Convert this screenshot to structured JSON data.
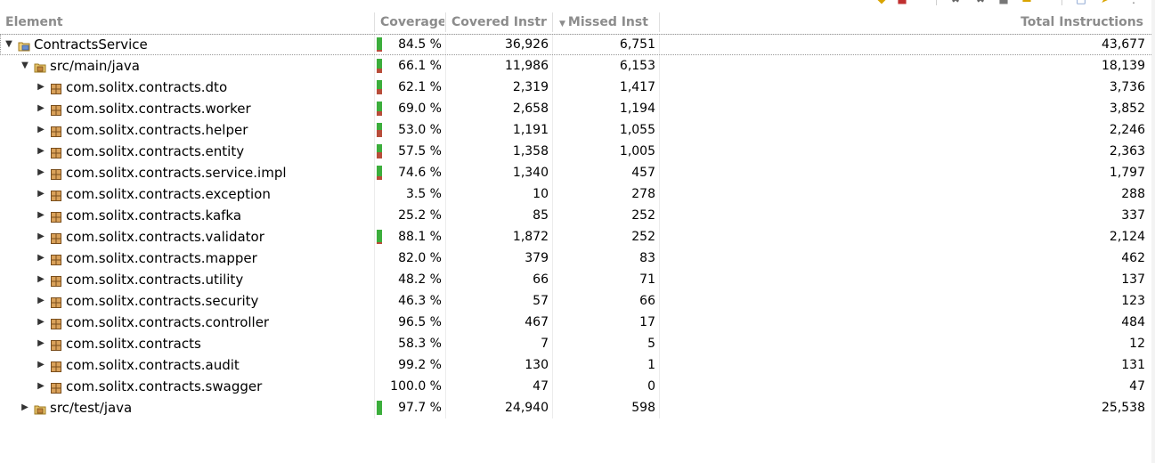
{
  "header": {
    "element": "Element",
    "coverage": "Coverage",
    "covered": "Covered Instr",
    "missed": "Missed Inst",
    "missed_sort_icon": "sort-down-icon",
    "total": "Total Instructions"
  },
  "toolbar": {
    "icons": [
      "collapse-all-icon",
      "show-legend-icon",
      "remove-session-icon",
      "remove-all-sessions-icon",
      "merge-sessions-icon",
      "export-icon",
      "new-window-icon",
      "import-icon",
      "menu-icon"
    ]
  },
  "colors": {
    "covered": "#3cae3c",
    "missed": "#b84d3a",
    "header_text": "#8c8c8c"
  },
  "rows": [
    {
      "name": "ContractsService",
      "icon": "project-icon",
      "expanded": true,
      "coverage": "84.5 %",
      "covered": "36,926",
      "missed": "6,751",
      "total": "43,677",
      "ratio": 0.845
    },
    {
      "name": "src/main/java",
      "icon": "source-folder-icon",
      "expanded": true,
      "coverage": "66.1 %",
      "covered": "11,986",
      "missed": "6,153",
      "total": "18,139",
      "ratio": 0.661
    },
    {
      "name": "com.solitx.contracts.dto",
      "icon": "package-icon",
      "expanded": false,
      "coverage": "62.1 %",
      "covered": "2,319",
      "missed": "1,417",
      "total": "3,736",
      "ratio": 0.621
    },
    {
      "name": "com.solitx.contracts.worker",
      "icon": "package-icon",
      "expanded": false,
      "coverage": "69.0 %",
      "covered": "2,658",
      "missed": "1,194",
      "total": "3,852",
      "ratio": 0.69
    },
    {
      "name": "com.solitx.contracts.helper",
      "icon": "package-icon",
      "expanded": false,
      "coverage": "53.0 %",
      "covered": "1,191",
      "missed": "1,055",
      "total": "2,246",
      "ratio": 0.53
    },
    {
      "name": "com.solitx.contracts.entity",
      "icon": "package-icon",
      "expanded": false,
      "coverage": "57.5 %",
      "covered": "1,358",
      "missed": "1,005",
      "total": "2,363",
      "ratio": 0.575
    },
    {
      "name": "com.solitx.contracts.service.impl",
      "icon": "package-icon",
      "expanded": false,
      "coverage": "74.6 %",
      "covered": "1,340",
      "missed": "457",
      "total": "1,797",
      "ratio": 0.746
    },
    {
      "name": "com.solitx.contracts.exception",
      "icon": "package-icon",
      "expanded": false,
      "coverage": "3.5 %",
      "covered": "10",
      "missed": "278",
      "total": "288",
      "ratio": 0.035
    },
    {
      "name": "com.solitx.contracts.kafka",
      "icon": "package-icon",
      "expanded": false,
      "coverage": "25.2 %",
      "covered": "85",
      "missed": "252",
      "total": "337",
      "ratio": 0.252
    },
    {
      "name": "com.solitx.contracts.validator",
      "icon": "package-icon",
      "expanded": false,
      "coverage": "88.1 %",
      "covered": "1,872",
      "missed": "252",
      "total": "2,124",
      "ratio": 0.881
    },
    {
      "name": "com.solitx.contracts.mapper",
      "icon": "package-icon",
      "expanded": false,
      "coverage": "82.0 %",
      "covered": "379",
      "missed": "83",
      "total": "462",
      "ratio": 0.82
    },
    {
      "name": "com.solitx.contracts.utility",
      "icon": "package-icon",
      "expanded": false,
      "coverage": "48.2 %",
      "covered": "66",
      "missed": "71",
      "total": "137",
      "ratio": 0.482
    },
    {
      "name": "com.solitx.contracts.security",
      "icon": "package-icon",
      "expanded": false,
      "coverage": "46.3 %",
      "covered": "57",
      "missed": "66",
      "total": "123",
      "ratio": 0.463
    },
    {
      "name": "com.solitx.contracts.controller",
      "icon": "package-icon",
      "expanded": false,
      "coverage": "96.5 %",
      "covered": "467",
      "missed": "17",
      "total": "484",
      "ratio": 0.965
    },
    {
      "name": "com.solitx.contracts",
      "icon": "package-icon",
      "expanded": false,
      "coverage": "58.3 %",
      "covered": "7",
      "missed": "5",
      "total": "12",
      "ratio": 0.583
    },
    {
      "name": "com.solitx.contracts.audit",
      "icon": "package-icon",
      "expanded": false,
      "coverage": "99.2 %",
      "covered": "130",
      "missed": "1",
      "total": "131",
      "ratio": 0.992
    },
    {
      "name": "com.solitx.contracts.swagger",
      "icon": "package-icon",
      "expanded": false,
      "coverage": "100.0 %",
      "covered": "47",
      "missed": "0",
      "total": "47",
      "ratio": 1.0
    },
    {
      "name": "src/test/java",
      "icon": "source-folder-icon",
      "expanded": false,
      "coverage": "97.7 %",
      "covered": "24,940",
      "missed": "598",
      "total": "25,538",
      "ratio": 0.977
    }
  ]
}
